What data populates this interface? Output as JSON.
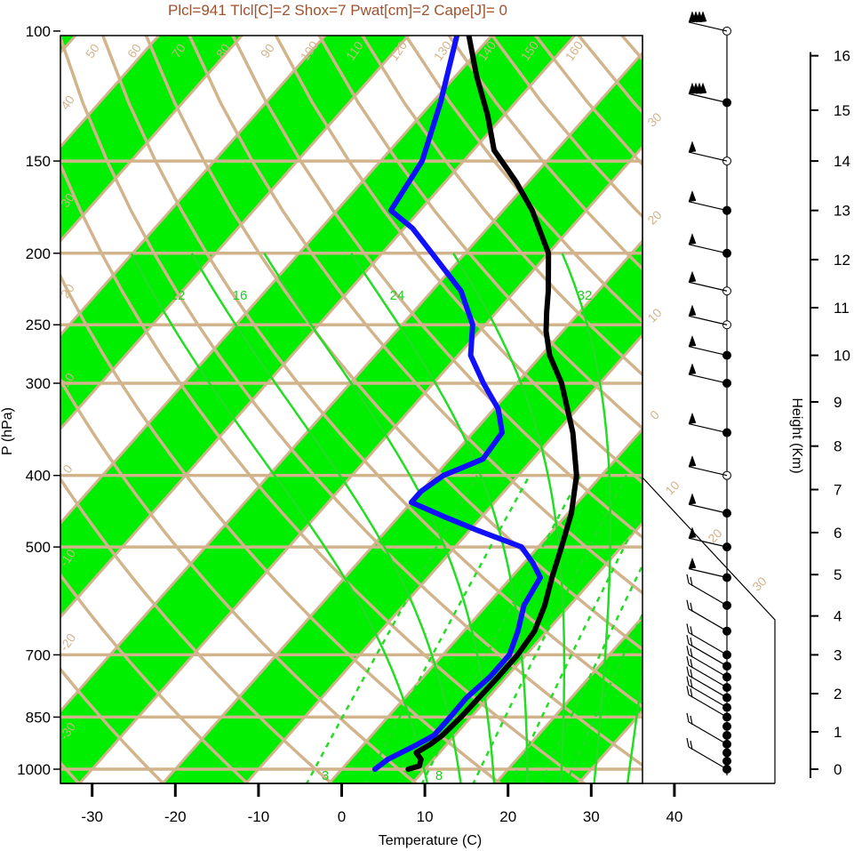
{
  "header": "Plcl=941 Tlcl[C]=2 Shox=7 Pwat[cm]=2 Cape[J]= 0",
  "chart_data": {
    "type": "line",
    "chart_kind": "skew-T log-P sounding",
    "xlabel": "Temperature (C)",
    "ylabel": "P (hPa)",
    "y2label": "Height (Km)",
    "xlim": [
      -34,
      36
    ],
    "ylim": [
      1050,
      100
    ],
    "y_scale": "log",
    "x_ticks": [
      -30,
      -20,
      -10,
      0,
      10,
      20,
      30,
      40
    ],
    "x_tick_labels": [
      "-30",
      "-20",
      "-10",
      "0",
      "10",
      "20",
      "30",
      "40"
    ],
    "p_ticks": [
      100,
      150,
      200,
      250,
      300,
      400,
      500,
      700,
      850,
      1000
    ],
    "p_tick_labels": [
      "100",
      "150",
      "200",
      "250",
      "300",
      "400",
      "500",
      "700",
      "850",
      "1000"
    ],
    "height_ticks": [
      0,
      1,
      2,
      3,
      4,
      5,
      6,
      7,
      8,
      9,
      10,
      11,
      12,
      13,
      14,
      15,
      16
    ],
    "height_tick_labels": [
      "0",
      "1",
      "2",
      "3",
      "4",
      "5",
      "6",
      "7",
      "8",
      "9",
      "10",
      "11",
      "12",
      "13",
      "14",
      "15",
      "16"
    ],
    "height_pressures": [
      1000,
      890,
      790,
      700,
      620,
      545,
      478,
      418,
      365,
      318,
      275,
      237,
      204,
      175,
      150,
      128,
      108
    ],
    "isotherm_labels": [
      "50",
      "60",
      "70",
      "80",
      "90",
      "100",
      "110",
      "120",
      "130",
      "140",
      "150",
      "160",
      "40",
      "30",
      "20",
      "10",
      "0",
      "-10",
      "-20",
      "-30",
      "30",
      "20",
      "10",
      "0",
      "10",
      "20",
      "30"
    ],
    "mixing_ratio_labels": [
      "12",
      "16",
      "24",
      "32",
      "3",
      "8"
    ],
    "series": [
      {
        "name": "",
        "color": "#000000",
        "points": [
          {
            "p": 1000,
            "t": 8.0
          },
          {
            "p": 990,
            "t": 9.0
          },
          {
            "p": 970,
            "t": 8.5
          },
          {
            "p": 950,
            "t": 7.2
          },
          {
            "p": 925,
            "t": 8.0
          },
          {
            "p": 900,
            "t": 8.5
          },
          {
            "p": 850,
            "t": 8.8
          },
          {
            "p": 800,
            "t": 8.9
          },
          {
            "p": 750,
            "t": 9.0
          },
          {
            "p": 700,
            "t": 9.0
          },
          {
            "p": 650,
            "t": 8.5
          },
          {
            "p": 600,
            "t": 7.0
          },
          {
            "p": 550,
            "t": 4.9
          },
          {
            "p": 500,
            "t": 2.8
          },
          {
            "p": 450,
            "t": 0.4
          },
          {
            "p": 400,
            "t": -3.0
          },
          {
            "p": 350,
            "t": -8.0
          },
          {
            "p": 300,
            "t": -14.6
          },
          {
            "p": 275,
            "t": -19.0
          },
          {
            "p": 255,
            "t": -22.0
          },
          {
            "p": 240,
            "t": -24.0
          },
          {
            "p": 225,
            "t": -26.0
          },
          {
            "p": 200,
            "t": -30.0
          },
          {
            "p": 175,
            "t": -36.5
          },
          {
            "p": 160,
            "t": -41.5
          },
          {
            "p": 145,
            "t": -47.5
          },
          {
            "p": 130,
            "t": -52.0
          },
          {
            "p": 115,
            "t": -57.5
          },
          {
            "p": 100,
            "t": -63.3
          }
        ]
      },
      {
        "name": "",
        "color": "#1010ff",
        "points": [
          {
            "p": 1000,
            "t": 4.0
          },
          {
            "p": 970,
            "t": 4.5
          },
          {
            "p": 925,
            "t": 6.5
          },
          {
            "p": 900,
            "t": 7.5
          },
          {
            "p": 850,
            "t": 7.5
          },
          {
            "p": 800,
            "t": 7.4
          },
          {
            "p": 750,
            "t": 8.0
          },
          {
            "p": 700,
            "t": 8.0
          },
          {
            "p": 650,
            "t": 6.5
          },
          {
            "p": 600,
            "t": 4.5
          },
          {
            "p": 550,
            "t": 3.5
          },
          {
            "p": 525,
            "t": 1.0
          },
          {
            "p": 500,
            "t": -2.0
          },
          {
            "p": 475,
            "t": -9.0
          },
          {
            "p": 455,
            "t": -14.5
          },
          {
            "p": 435,
            "t": -20.0
          },
          {
            "p": 420,
            "t": -20.0
          },
          {
            "p": 400,
            "t": -19.0
          },
          {
            "p": 380,
            "t": -16.0
          },
          {
            "p": 350,
            "t": -16.5
          },
          {
            "p": 325,
            "t": -19.5
          },
          {
            "p": 300,
            "t": -24.0
          },
          {
            "p": 275,
            "t": -28.5
          },
          {
            "p": 250,
            "t": -31.5
          },
          {
            "p": 225,
            "t": -36.5
          },
          {
            "p": 200,
            "t": -44.0
          },
          {
            "p": 185,
            "t": -49.0
          },
          {
            "p": 175,
            "t": -53.5
          },
          {
            "p": 150,
            "t": -55.0
          },
          {
            "p": 125,
            "t": -59.0
          },
          {
            "p": 100,
            "t": -64.5
          }
        ]
      }
    ]
  }
}
